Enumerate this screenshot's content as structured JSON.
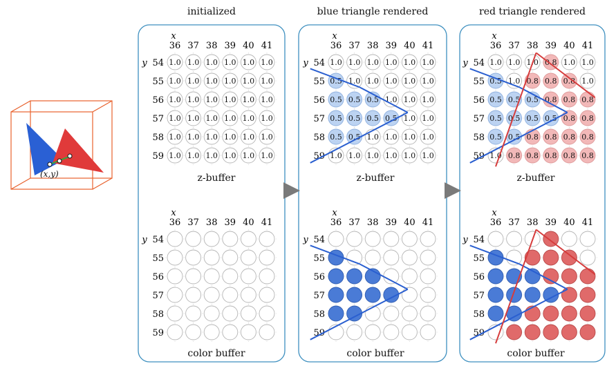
{
  "stage_titles": [
    "initialized",
    "blue triangle rendered",
    "red triangle rendered"
  ],
  "zbuffer_caption": "z-buffer",
  "colorbuffer_caption": "color buffer",
  "x_axis_label": "x",
  "y_axis_label": "y",
  "x_ticks": [
    "36",
    "37",
    "38",
    "39",
    "40",
    "41"
  ],
  "y_ticks": [
    "54",
    "55",
    "56",
    "57",
    "58",
    "59"
  ],
  "inset_point_label": "(x,y)",
  "colors": {
    "panel_border": "#3d8fbf",
    "blue_fill": "#4a7bd6",
    "blue_light": "#bcd3f2",
    "red_fill": "#e06a6a",
    "red_light": "#f2b8b8",
    "blue_line": "#2a5fd0",
    "red_line": "#d63c3c",
    "arrow": "#7a7a7a",
    "inset_box": "#e8612c"
  },
  "z_values": {
    "initialized": [
      [
        "1.0",
        "1.0",
        "1.0",
        "1.0",
        "1.0",
        "1.0"
      ],
      [
        "1.0",
        "1.0",
        "1.0",
        "1.0",
        "1.0",
        "1.0"
      ],
      [
        "1.0",
        "1.0",
        "1.0",
        "1.0",
        "1.0",
        "1.0"
      ],
      [
        "1.0",
        "1.0",
        "1.0",
        "1.0",
        "1.0",
        "1.0"
      ],
      [
        "1.0",
        "1.0",
        "1.0",
        "1.0",
        "1.0",
        "1.0"
      ],
      [
        "1.0",
        "1.0",
        "1.0",
        "1.0",
        "1.0",
        "1.0"
      ]
    ],
    "blue": [
      [
        "1.0",
        "1.0",
        "1.0",
        "1.0",
        "1.0",
        "1.0"
      ],
      [
        "0.5",
        "1.0",
        "1.0",
        "1.0",
        "1.0",
        "1.0"
      ],
      [
        "0.5",
        "0.5",
        "0.5",
        "1.0",
        "1.0",
        "1.0"
      ],
      [
        "0.5",
        "0.5",
        "0.5",
        "0.5",
        "1.0",
        "1.0"
      ],
      [
        "0.5",
        "0.5",
        "1.0",
        "1.0",
        "1.0",
        "1.0"
      ],
      [
        "1.0",
        "1.0",
        "1.0",
        "1.0",
        "1.0",
        "1.0"
      ]
    ],
    "red": [
      [
        "1.0",
        "1.0",
        "1.0",
        "0.8",
        "1.0",
        "1.0"
      ],
      [
        "0.5",
        "1.0",
        "0.8",
        "0.8",
        "0.8",
        "1.0"
      ],
      [
        "0.5",
        "0.5",
        "0.5",
        "0.8",
        "0.8",
        "0.8"
      ],
      [
        "0.5",
        "0.5",
        "0.5",
        "0.5",
        "0.8",
        "0.8"
      ],
      [
        "0.5",
        "0.5",
        "0.8",
        "0.8",
        "0.8",
        "0.8"
      ],
      [
        "1.0",
        "0.8",
        "0.8",
        "0.8",
        "0.8",
        "0.8"
      ]
    ]
  },
  "fill_states": {
    "initialized": [
      [
        "n",
        "n",
        "n",
        "n",
        "n",
        "n"
      ],
      [
        "n",
        "n",
        "n",
        "n",
        "n",
        "n"
      ],
      [
        "n",
        "n",
        "n",
        "n",
        "n",
        "n"
      ],
      [
        "n",
        "n",
        "n",
        "n",
        "n",
        "n"
      ],
      [
        "n",
        "n",
        "n",
        "n",
        "n",
        "n"
      ],
      [
        "n",
        "n",
        "n",
        "n",
        "n",
        "n"
      ]
    ],
    "blue": [
      [
        "n",
        "n",
        "n",
        "n",
        "n",
        "n"
      ],
      [
        "b",
        "n",
        "n",
        "n",
        "n",
        "n"
      ],
      [
        "b",
        "b",
        "b",
        "n",
        "n",
        "n"
      ],
      [
        "b",
        "b",
        "b",
        "b",
        "n",
        "n"
      ],
      [
        "b",
        "b",
        "n",
        "n",
        "n",
        "n"
      ],
      [
        "n",
        "n",
        "n",
        "n",
        "n",
        "n"
      ]
    ],
    "red": [
      [
        "n",
        "n",
        "n",
        "r",
        "n",
        "n"
      ],
      [
        "b",
        "n",
        "r",
        "r",
        "r",
        "n"
      ],
      [
        "b",
        "b",
        "b",
        "r",
        "r",
        "r"
      ],
      [
        "b",
        "b",
        "b",
        "b",
        "r",
        "r"
      ],
      [
        "b",
        "b",
        "r",
        "r",
        "r",
        "r"
      ],
      [
        "n",
        "r",
        "r",
        "r",
        "r",
        "r"
      ]
    ]
  }
}
